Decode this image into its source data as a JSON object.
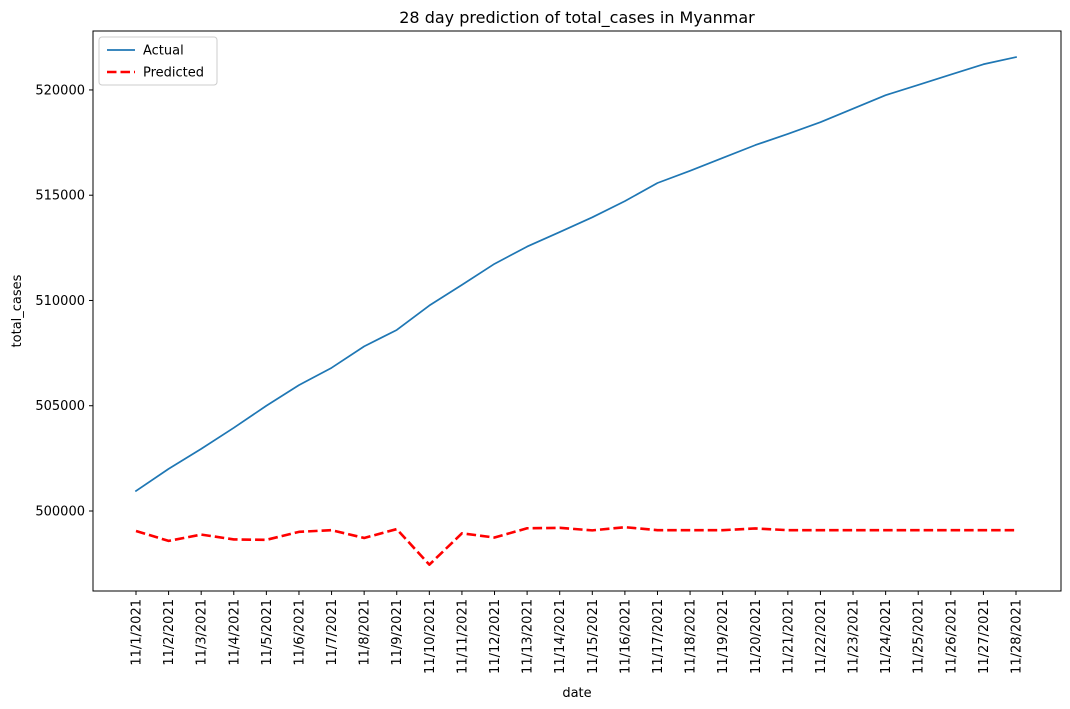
{
  "chart_data": {
    "type": "line",
    "title": "28 day prediction of total_cases in Myanmar",
    "xlabel": "date",
    "ylabel": "total_cases",
    "categories": [
      "11/1/2021",
      "11/2/2021",
      "11/3/2021",
      "11/4/2021",
      "11/5/2021",
      "11/6/2021",
      "11/7/2021",
      "11/8/2021",
      "11/9/2021",
      "11/10/2021",
      "11/11/2021",
      "11/12/2021",
      "11/13/2021",
      "11/14/2021",
      "11/15/2021",
      "11/16/2021",
      "11/17/2021",
      "11/18/2021",
      "11/19/2021",
      "11/20/2021",
      "11/21/2021",
      "11/22/2021",
      "11/23/2021",
      "11/24/2021",
      "11/25/2021",
      "11/26/2021",
      "11/27/2021",
      "11/28/2021"
    ],
    "yticks": [
      500000,
      505000,
      510000,
      515000,
      520000
    ],
    "ytick_labels": [
      "500000",
      "505000",
      "510000",
      "515000",
      "520000"
    ],
    "ylim": [
      496200,
      522800
    ],
    "grid": false,
    "legend_position": "top-left",
    "series": [
      {
        "name": "Actual",
        "color": "#1f77b4",
        "style": "solid",
        "values": [
          500950,
          502000,
          502950,
          503950,
          505000,
          505980,
          506800,
          507820,
          508600,
          509760,
          510740,
          511740,
          512560,
          513250,
          513950,
          514720,
          515580,
          516160,
          516770,
          517380,
          517910,
          518470,
          519110,
          519750,
          520240,
          520730,
          521220,
          521560
        ]
      },
      {
        "name": "Predicted",
        "color": "#ff0000",
        "style": "dashed",
        "values": [
          499050,
          498580,
          498880,
          498650,
          498630,
          499010,
          499090,
          498720,
          499140,
          497450,
          498940,
          498740,
          499180,
          499200,
          499080,
          499230,
          499090,
          499090,
          499090,
          499170,
          499090,
          499090,
          499090,
          499090,
          499090,
          499090,
          499090,
          499090
        ]
      }
    ]
  }
}
